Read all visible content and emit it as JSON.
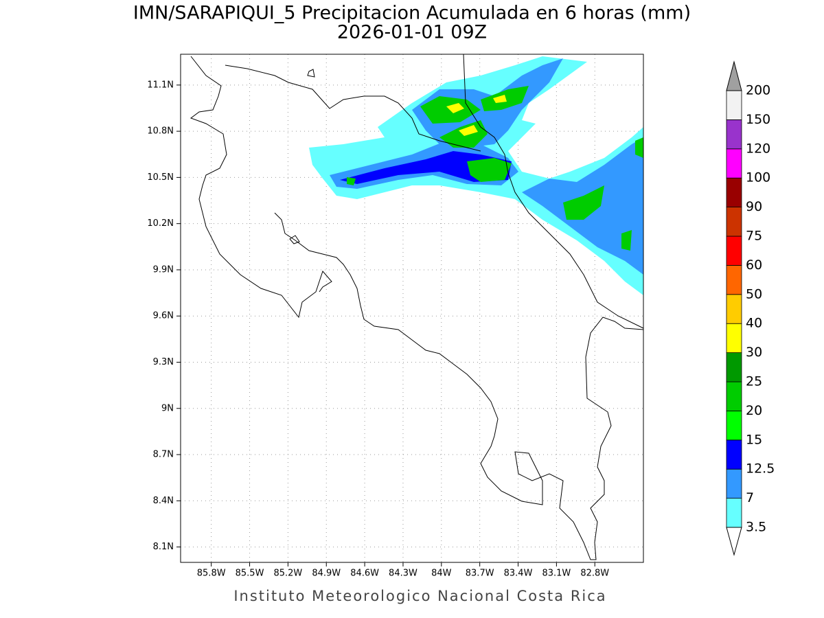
{
  "title": "IMN/SARAPIQUI_5 Precipitacion Acumulada en 6 horas (mm)",
  "subtitle": "2026-01-01 09Z",
  "footer": "Instituto Meteorologico Nacional Costa Rica",
  "map": {
    "xlim": [
      -86.04,
      -82.42
    ],
    "ylim": [
      8.0,
      11.3
    ],
    "xticks": [
      {
        "value": -85.8,
        "label": "85.8W"
      },
      {
        "value": -85.5,
        "label": "85.5W"
      },
      {
        "value": -85.2,
        "label": "85.2W"
      },
      {
        "value": -84.9,
        "label": "84.9W"
      },
      {
        "value": -84.6,
        "label": "84.6W"
      },
      {
        "value": -84.3,
        "label": "84.3W"
      },
      {
        "value": -84.0,
        "label": "84W"
      },
      {
        "value": -83.7,
        "label": "83.7W"
      },
      {
        "value": -83.4,
        "label": "83.4W"
      },
      {
        "value": -83.1,
        "label": "83.1W"
      },
      {
        "value": -82.8,
        "label": "82.8W"
      }
    ],
    "yticks": [
      {
        "value": 8.1,
        "label": "8.1N"
      },
      {
        "value": 8.4,
        "label": "8.4N"
      },
      {
        "value": 8.7,
        "label": "8.7N"
      },
      {
        "value": 9.0,
        "label": "9N"
      },
      {
        "value": 9.3,
        "label": "9.3N"
      },
      {
        "value": 9.6,
        "label": "9.6N"
      },
      {
        "value": 9.9,
        "label": "9.9N"
      },
      {
        "value": 10.2,
        "label": "10.2N"
      },
      {
        "value": 10.5,
        "label": "10.5N"
      },
      {
        "value": 10.8,
        "label": "10.8N"
      },
      {
        "value": 11.1,
        "label": "11.1N"
      }
    ],
    "grid": true
  },
  "colorbar": {
    "levels": [
      3.5,
      7,
      12.5,
      15,
      20,
      25,
      30,
      40,
      50,
      60,
      75,
      90,
      100,
      120,
      150,
      200
    ],
    "colors": [
      "#66ffff",
      "#3399ff",
      "#0000ff",
      "#00ff00",
      "#00cc00",
      "#009900",
      "#ffff00",
      "#ffcc00",
      "#ff6600",
      "#ff0000",
      "#cc3300",
      "#990000",
      "#ff00ff",
      "#9933cc",
      "#f2f2f2"
    ],
    "under_color": "#ffffff",
    "over_color": "#a0a0a0"
  }
}
